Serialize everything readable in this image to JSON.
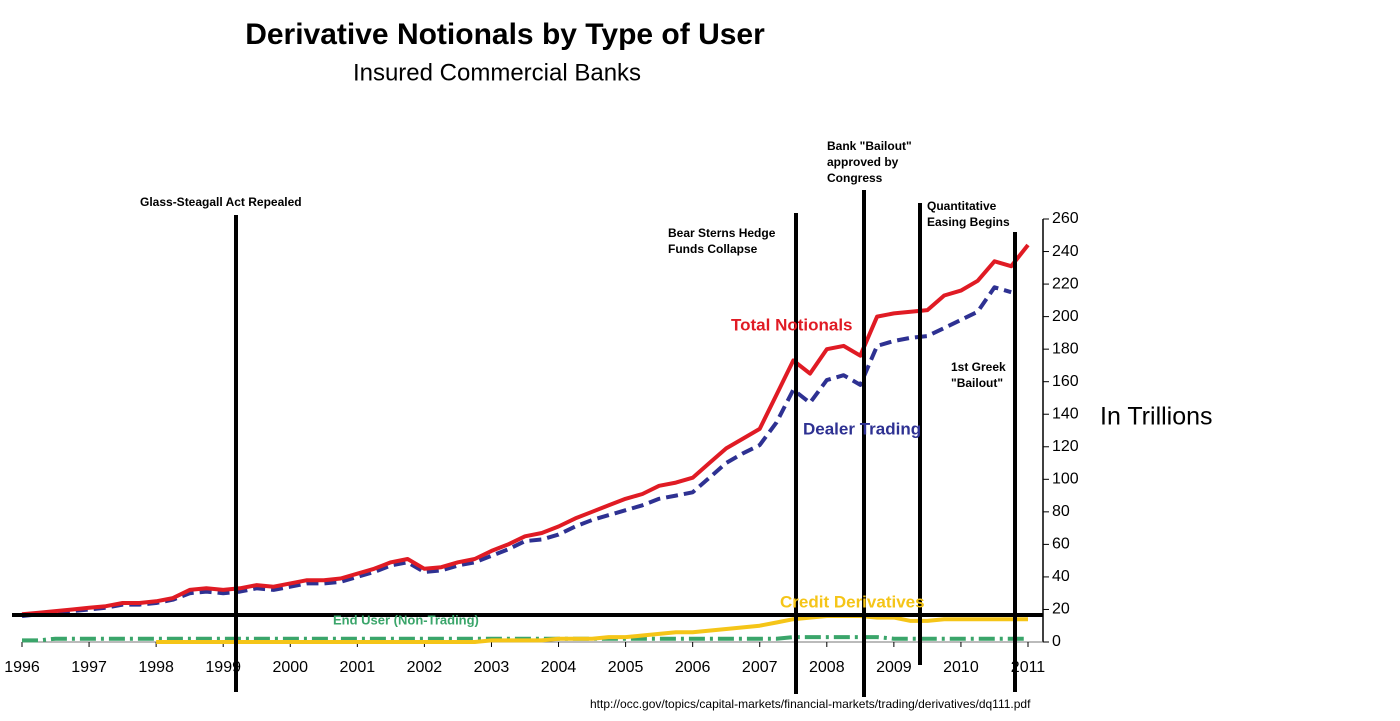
{
  "chart_data": {
    "type": "line",
    "title": "Derivative Notionals by Type of User",
    "subtitle": "Insured Commercial Banks",
    "y_label": "In Trillions",
    "source": "http://occ.gov/topics/capital-markets/financial-markets/trading/derivatives/dq111.pdf",
    "annotations": [
      [
        "Glass-Steagall Act Repealed"
      ],
      [
        "Bear Sterns Hedge",
        "Funds Collapse"
      ],
      [
        "Bank \"Bailout\"",
        "approved by",
        "Congress"
      ],
      [
        "Quantitative",
        "Easing Begins"
      ],
      [
        "1st Greek",
        "\"Bailout\""
      ]
    ],
    "x": [
      1996,
      1996.25,
      1996.5,
      1996.75,
      1997,
      1997.25,
      1997.5,
      1997.75,
      1998,
      1998.25,
      1998.5,
      1998.75,
      1999,
      1999.25,
      1999.5,
      1999.75,
      2000,
      2000.25,
      2000.5,
      2000.75,
      2001,
      2001.25,
      2001.5,
      2001.75,
      2002,
      2002.25,
      2002.5,
      2002.75,
      2003,
      2003.25,
      2003.5,
      2003.75,
      2004,
      2004.25,
      2004.5,
      2004.75,
      2005,
      2005.25,
      2005.5,
      2005.75,
      2006,
      2006.25,
      2006.5,
      2006.75,
      2007,
      2007.25,
      2007.5,
      2007.75,
      2008,
      2008.25,
      2008.5,
      2008.75,
      2009,
      2009.25,
      2009.5,
      2009.75,
      2010,
      2010.25,
      2010.5,
      2010.75,
      2011
    ],
    "series": [
      {
        "name": "Total Notionals",
        "color": "#e01b24",
        "dash": "none",
        "values": [
          17,
          18,
          19,
          20,
          21,
          22,
          24,
          24,
          25,
          27,
          32,
          33,
          32,
          33,
          35,
          34,
          36,
          38,
          38,
          39,
          42,
          45,
          49,
          51,
          45,
          46,
          49,
          51,
          56,
          60,
          65,
          67,
          71,
          76,
          80,
          84,
          88,
          91,
          96,
          98,
          101,
          110,
          119,
          125,
          131,
          152,
          173,
          165,
          180,
          182,
          176,
          200,
          202,
          203,
          204,
          213,
          216,
          222,
          234,
          231,
          244
        ]
      },
      {
        "name": "Dealer Trading",
        "color": "#2e3192",
        "dash": "12 6",
        "values": [
          16,
          17,
          18,
          19,
          20,
          21,
          23,
          23,
          24,
          26,
          30,
          31,
          30,
          31,
          33,
          32,
          34,
          36,
          36,
          37,
          40,
          43,
          47,
          49,
          43,
          44,
          47,
          49,
          53,
          57,
          62,
          63,
          66,
          71,
          75,
          78,
          81,
          84,
          88,
          90,
          92,
          101,
          110,
          116,
          121,
          135,
          155,
          147,
          161,
          164,
          158,
          182,
          185,
          187,
          188,
          193,
          198,
          203,
          218,
          215,
          null
        ]
      },
      {
        "name": "Credit Derivatives",
        "color": "#f5c518",
        "dash": "none",
        "values": [
          null,
          null,
          null,
          null,
          null,
          null,
          null,
          null,
          0,
          0,
          0,
          0,
          0,
          0,
          0,
          0,
          0,
          0,
          0,
          0,
          0,
          0,
          0,
          0,
          0,
          0,
          0,
          0,
          1,
          1,
          1,
          1,
          2,
          2,
          2,
          3,
          3,
          4,
          5,
          6,
          6,
          7,
          8,
          9,
          10,
          12,
          14,
          15,
          16,
          16,
          16,
          15,
          15,
          13,
          13,
          14,
          14,
          14,
          14,
          14,
          14
        ]
      },
      {
        "name": "End User (Non-Trading)",
        "color": "#3aa56a",
        "dash": "16 5 3 5",
        "values": [
          1,
          1,
          2,
          2,
          2,
          2,
          2,
          2,
          2,
          2,
          2,
          2,
          2,
          2,
          2,
          2,
          2,
          2,
          2,
          2,
          2,
          2,
          2,
          2,
          2,
          2,
          2,
          2,
          2,
          2,
          2,
          2,
          2,
          2,
          2,
          2,
          2,
          2,
          2,
          2,
          2,
          2,
          2,
          2,
          2,
          2,
          3,
          3,
          3,
          3,
          3,
          3,
          2,
          2,
          2,
          2,
          2,
          2,
          2,
          2,
          2
        ]
      }
    ],
    "xlim": [
      1996,
      2011
    ],
    "xticks": [
      1996,
      1997,
      1998,
      1999,
      2000,
      2001,
      2002,
      2003,
      2004,
      2005,
      2006,
      2007,
      2008,
      2009,
      2010,
      2011
    ],
    "ylim": [
      0,
      260
    ],
    "yticks": [
      0,
      20,
      40,
      60,
      80,
      100,
      120,
      140,
      160,
      180,
      200,
      220,
      240,
      260
    ],
    "grid": false
  }
}
